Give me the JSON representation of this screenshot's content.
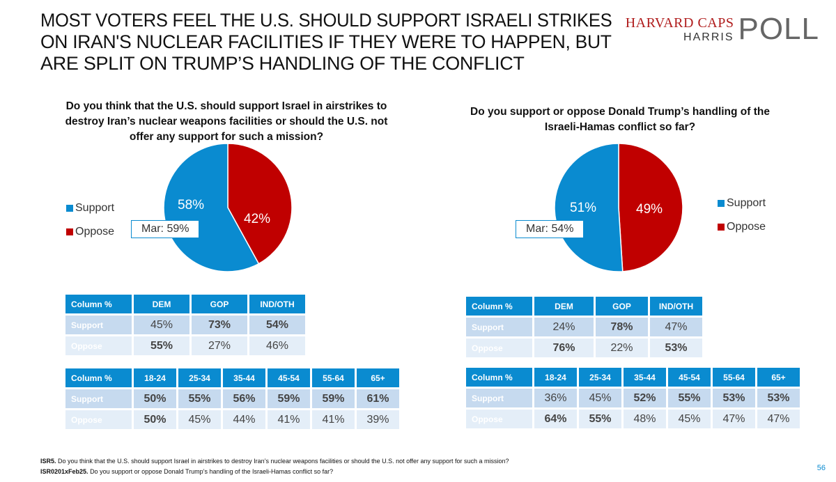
{
  "title": {
    "lines": [
      "MOST VOTERS FEEL THE U.S. SHOULD SUPPORT ISRAELI STRIKES",
      "ON IRAN'S NUCLEAR FACILITIES IF THEY WERE TO HAPPEN, BUT",
      "ARE SPLIT ON TRUMP’S HANDLING OF THE CONFLICT"
    ]
  },
  "logo": {
    "line1": "HARVARD CAPS",
    "line2": "HARRIS",
    "line3": "POLL"
  },
  "colors": {
    "support": "#0a8bd0",
    "oppose": "#c00000"
  },
  "chart_data": [
    {
      "type": "pie",
      "title": "Do you think that the U.S. should support Israel in airstrikes to destroy Iran’s nuclear weapons facilities or should the U.S. not offer any support for such a mission?",
      "categories": [
        "Support",
        "Oppose"
      ],
      "values": [
        58,
        42
      ],
      "labels": [
        "58%",
        "42%"
      ],
      "annotation": "Mar: 59%",
      "legend": "left"
    },
    {
      "type": "pie",
      "title": "Do you support or oppose Donald Trump’s handling of the Israeli-Hamas conflict so far?",
      "categories": [
        "Support",
        "Oppose"
      ],
      "values": [
        51,
        49
      ],
      "labels": [
        "51%",
        "49%"
      ],
      "annotation": "Mar: 54%",
      "legend": "right"
    }
  ],
  "tables": {
    "left_party": {
      "header": [
        "Column %",
        "DEM",
        "GOP",
        "IND/OTH"
      ],
      "rows": [
        {
          "label": "Support",
          "values": [
            "45%",
            "73%",
            "54%"
          ],
          "bold": [
            false,
            true,
            true
          ]
        },
        {
          "label": "Oppose",
          "values": [
            "55%",
            "27%",
            "46%"
          ],
          "bold": [
            true,
            false,
            false
          ]
        }
      ]
    },
    "left_age": {
      "header": [
        "Column %",
        "18-24",
        "25-34",
        "35-44",
        "45-54",
        "55-64",
        "65+"
      ],
      "rows": [
        {
          "label": "Support",
          "values": [
            "50%",
            "55%",
            "56%",
            "59%",
            "59%",
            "61%"
          ],
          "bold": [
            true,
            true,
            true,
            true,
            true,
            true
          ]
        },
        {
          "label": "Oppose",
          "values": [
            "50%",
            "45%",
            "44%",
            "41%",
            "41%",
            "39%"
          ],
          "bold": [
            true,
            false,
            false,
            false,
            false,
            false
          ]
        }
      ]
    },
    "right_party": {
      "header": [
        "Column %",
        "DEM",
        "GOP",
        "IND/OTH"
      ],
      "rows": [
        {
          "label": "Support",
          "values": [
            "24%",
            "78%",
            "47%"
          ],
          "bold": [
            false,
            true,
            false
          ]
        },
        {
          "label": "Oppose",
          "values": [
            "76%",
            "22%",
            "53%"
          ],
          "bold": [
            true,
            false,
            true
          ]
        }
      ]
    },
    "right_age": {
      "header": [
        "Column %",
        "18-24",
        "25-34",
        "35-44",
        "45-54",
        "55-64",
        "65+"
      ],
      "rows": [
        {
          "label": "Support",
          "values": [
            "36%",
            "45%",
            "52%",
            "55%",
            "53%",
            "53%"
          ],
          "bold": [
            false,
            false,
            true,
            true,
            true,
            true
          ]
        },
        {
          "label": "Oppose",
          "values": [
            "64%",
            "55%",
            "48%",
            "45%",
            "47%",
            "47%"
          ],
          "bold": [
            true,
            true,
            false,
            false,
            false,
            false
          ]
        }
      ]
    }
  },
  "footnotes": [
    {
      "code": "ISR5.",
      "text": "Do you think that the U.S. should support Israel in airstrikes to destroy Iran’s nuclear weapons facilities or should the U.S. not offer any support for such a mission?"
    },
    {
      "code": "ISR0201xFeb25.",
      "text": "Do you support or oppose Donald Trump’s handling of the Israeli-Hamas conflict so far?"
    }
  ],
  "page_number": "56"
}
